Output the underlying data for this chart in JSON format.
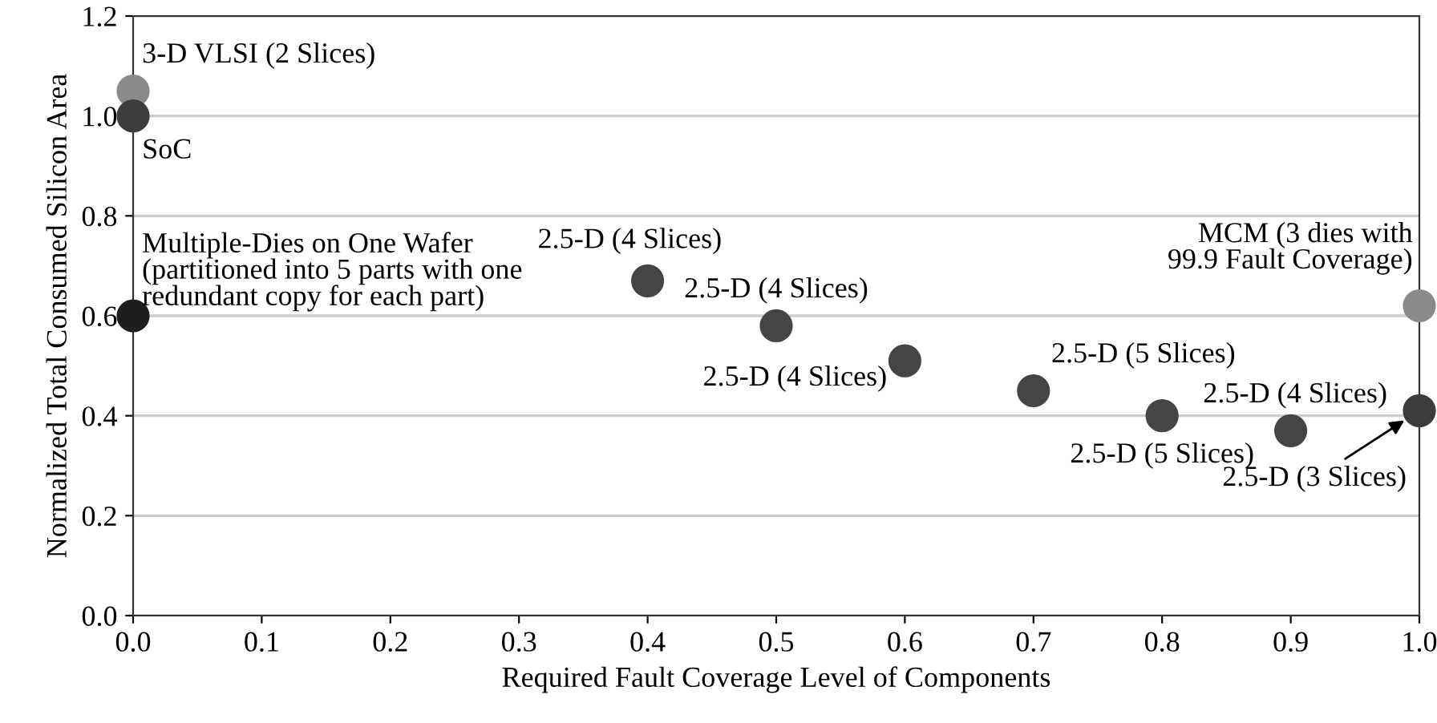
{
  "chart_data": {
    "type": "scatter",
    "xlabel": "Required Fault Coverage Level of Components",
    "ylabel": "Normalized Total Consumed Silicon Area",
    "x": [
      0.0,
      0.0,
      0.0,
      0.4,
      0.5,
      0.6,
      0.7,
      0.8,
      0.9,
      1.0,
      1.0
    ],
    "values": [
      1.05,
      1.0,
      0.6,
      0.67,
      0.58,
      0.51,
      0.45,
      0.4,
      0.37,
      0.41,
      0.62
    ],
    "colors": [
      "#8a8a8a",
      "#3c3c3c",
      "#1e1e1e",
      "#454545",
      "#454545",
      "#454545",
      "#454545",
      "#454545",
      "#454545",
      "#3c3c3c",
      "#8a8a8a"
    ],
    "xlim": [
      0.0,
      1.0
    ],
    "xticks": [
      {
        "value": 0.0,
        "label": "0.0"
      },
      0.1,
      0.2,
      0.3,
      0.4,
      0.5,
      0.6,
      0.7,
      0.8,
      0.9,
      {
        "value": 1.0,
        "label": "1.0"
      }
    ],
    "ylim": [
      0.0,
      1.2
    ],
    "yticks": [
      {
        "value": 0.0,
        "label": "0.0"
      },
      0.2,
      0.4,
      0.6,
      0.8,
      {
        "value": 1.0,
        "label": "1.0"
      },
      1.2
    ],
    "grid": "y",
    "marker": "circle",
    "annotations": [
      {
        "text": "3-D VLSI (2 Slices)",
        "x": 0.0,
        "y": 1.05
      },
      {
        "text": "SoC",
        "x": 0.0,
        "y": 1.0
      },
      {
        "text": "Multiple-Dies on One Wafer\n(partitioned into 5 parts with one\nredundant copy for each part)",
        "x": 0.0,
        "y": 0.6
      },
      {
        "text": "2.5-D (4 Slices)",
        "x": 0.4,
        "y": 0.67
      },
      {
        "text": "2.5-D (4 Slices)",
        "x": 0.5,
        "y": 0.58
      },
      {
        "text": "2.5-D (4 Slices)",
        "x": 0.6,
        "y": 0.51
      },
      {
        "text": "2.5-D (5 Slices)",
        "x": 0.7,
        "y": 0.45
      },
      {
        "text": "2.5-D (5 Slices)",
        "x": 0.8,
        "y": 0.4
      },
      {
        "text": "2.5-D (4 Slices)",
        "x": 0.9,
        "y": 0.37
      },
      {
        "text": "2.5-D (3 Slices)",
        "x": 1.0,
        "y": 0.41
      },
      {
        "text": "MCM (3 dies with\n99.9 Fault Coverage)",
        "x": 1.0,
        "y": 0.62
      }
    ]
  }
}
